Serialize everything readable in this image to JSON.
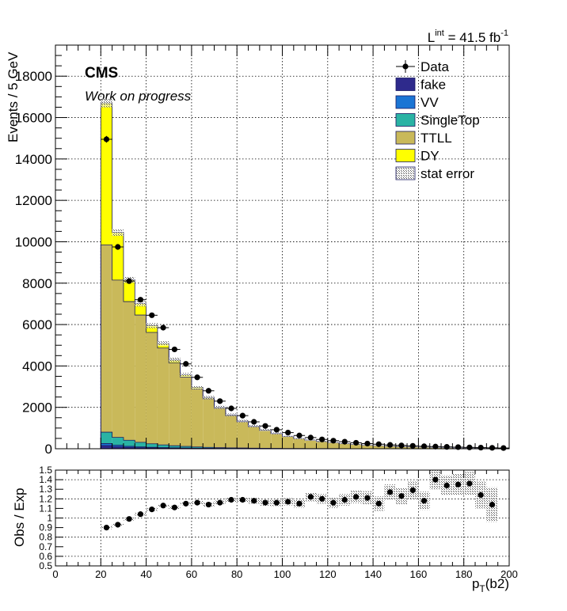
{
  "header": {
    "lumi_prefix": "L",
    "lumi_sup": "int",
    "lumi_value": " = 41.5 fb",
    "lumi_unit_sup": "-1",
    "cms_label": "CMS",
    "cms_sublabel": "Work on progress"
  },
  "chart_data": [
    {
      "type": "bar",
      "stacked": true,
      "ylabel": "Events / 5 GeV",
      "xlim": [
        0,
        200
      ],
      "ylim": [
        0,
        19500
      ],
      "grid": true,
      "legend_placement": "top-right",
      "y_ticks": [
        "0",
        "2000",
        "4000",
        "6000",
        "8000",
        "10000",
        "12000",
        "14000",
        "16000",
        "18000"
      ],
      "bin_edges": [
        20,
        25,
        30,
        35,
        40,
        45,
        50,
        55,
        60,
        65,
        70,
        75,
        80,
        85,
        90,
        95,
        100,
        105,
        110,
        115,
        120,
        125,
        130,
        135,
        140,
        145,
        150,
        155,
        160,
        165,
        170,
        175,
        180,
        185,
        190,
        195,
        200
      ],
      "bin_centers": [
        22.5,
        27.5,
        32.5,
        37.5,
        42.5,
        47.5,
        52.5,
        57.5,
        62.5,
        67.5,
        72.5,
        77.5,
        82.5,
        87.5,
        92.5,
        97.5,
        102.5,
        107.5,
        112.5,
        117.5,
        122.5,
        127.5,
        132.5,
        137.5,
        142.5,
        147.5,
        152.5,
        157.5,
        162.5,
        167.5,
        172.5,
        177.5,
        182.5,
        187.5,
        192.5,
        197.5
      ],
      "series": [
        {
          "name": "fake",
          "color": "#2e2a8c",
          "values": [
            150,
            100,
            70,
            50,
            40,
            30,
            25,
            20,
            15,
            12,
            10,
            8,
            7,
            6,
            5,
            4,
            3,
            3,
            2,
            2,
            2,
            1,
            1,
            1,
            1,
            1,
            1,
            1,
            1,
            1,
            1,
            1,
            1,
            1,
            1,
            1
          ]
        },
        {
          "name": "VV",
          "color": "#1b75d4",
          "values": [
            100,
            70,
            50,
            40,
            30,
            25,
            20,
            15,
            12,
            10,
            8,
            7,
            6,
            5,
            4,
            3,
            3,
            2,
            2,
            2,
            1,
            1,
            1,
            1,
            1,
            1,
            1,
            1,
            1,
            1,
            1,
            1,
            1,
            1,
            1,
            1
          ]
        },
        {
          "name": "SingleTop",
          "color": "#2ab3a4",
          "values": [
            550,
            380,
            290,
            220,
            170,
            130,
            100,
            80,
            60,
            45,
            35,
            28,
            22,
            18,
            14,
            11,
            9,
            7,
            6,
            5,
            4,
            3,
            3,
            2,
            2,
            2,
            1,
            1,
            1,
            1,
            1,
            1,
            1,
            1,
            1,
            1
          ]
        },
        {
          "name": "TTLL",
          "color": "#c9b95a",
          "values": [
            9050,
            7600,
            6700,
            6150,
            5380,
            4680,
            4000,
            3350,
            2800,
            2340,
            1900,
            1560,
            1270,
            1040,
            860,
            710,
            580,
            480,
            400,
            340,
            290,
            240,
            200,
            170,
            145,
            120,
            100,
            85,
            72,
            60,
            50,
            42,
            35,
            30,
            25,
            20
          ]
        },
        {
          "name": "DY",
          "color": "#ffff00",
          "values": [
            6850,
            2300,
            1050,
            550,
            330,
            215,
            145,
            105,
            80,
            62,
            48,
            38,
            30,
            25,
            20,
            16,
            13,
            11,
            9,
            8,
            7,
            6,
            5,
            4,
            4,
            3,
            3,
            2,
            2,
            2,
            2,
            1,
            1,
            1,
            1,
            1
          ]
        }
      ],
      "data": {
        "name": "Data",
        "values": [
          14950,
          9750,
          8100,
          7200,
          6450,
          5850,
          4800,
          4100,
          3450,
          2800,
          2300,
          1950,
          1600,
          1300,
          1100,
          920,
          780,
          640,
          540,
          450,
          390,
          340,
          290,
          250,
          220,
          185,
          160,
          140,
          120,
          105,
          90,
          78,
          65,
          55,
          45,
          35
        ]
      },
      "stat_error": {
        "name": "stat error"
      }
    },
    {
      "type": "scatter",
      "xlabel_main": "p",
      "xlabel_sub": "T",
      "xlabel_rest": "(b2)",
      "ylabel": "Obs / Exp",
      "xlim": [
        0,
        200
      ],
      "ylim": [
        0.5,
        1.5
      ],
      "grid": true,
      "x_ticks": [
        "0",
        "20",
        "40",
        "60",
        "80",
        "100",
        "120",
        "140",
        "160",
        "180",
        "200"
      ],
      "y_ticks": [
        "0.5",
        "0.6",
        "0.7",
        "0.8",
        "0.9",
        "1",
        "1.1",
        "1.2",
        "1.3",
        "1.4",
        "1.5"
      ],
      "x": [
        22.5,
        27.5,
        32.5,
        37.5,
        42.5,
        47.5,
        52.5,
        57.5,
        62.5,
        67.5,
        72.5,
        77.5,
        82.5,
        87.5,
        92.5,
        97.5,
        102.5,
        107.5,
        112.5,
        117.5,
        122.5,
        127.5,
        132.5,
        137.5,
        142.5,
        147.5,
        152.5,
        157.5,
        162.5,
        167.5,
        172.5,
        177.5,
        182.5,
        187.5,
        192.5
      ],
      "y": [
        0.9,
        0.93,
        0.99,
        1.04,
        1.09,
        1.13,
        1.11,
        1.15,
        1.16,
        1.14,
        1.16,
        1.19,
        1.19,
        1.18,
        1.16,
        1.16,
        1.17,
        1.15,
        1.22,
        1.2,
        1.16,
        1.19,
        1.22,
        1.21,
        1.15,
        1.27,
        1.23,
        1.29,
        1.18,
        1.4,
        1.34,
        1.35,
        1.36,
        1.24,
        1.14
      ],
      "err_band": [
        0.015,
        0.015,
        0.015,
        0.015,
        0.015,
        0.015,
        0.015,
        0.016,
        0.018,
        0.02,
        0.022,
        0.025,
        0.027,
        0.03,
        0.032,
        0.035,
        0.038,
        0.042,
        0.046,
        0.05,
        0.055,
        0.06,
        0.065,
        0.07,
        0.075,
        0.08,
        0.085,
        0.09,
        0.095,
        0.1,
        0.105,
        0.11,
        0.12,
        0.14,
        0.18
      ]
    }
  ]
}
